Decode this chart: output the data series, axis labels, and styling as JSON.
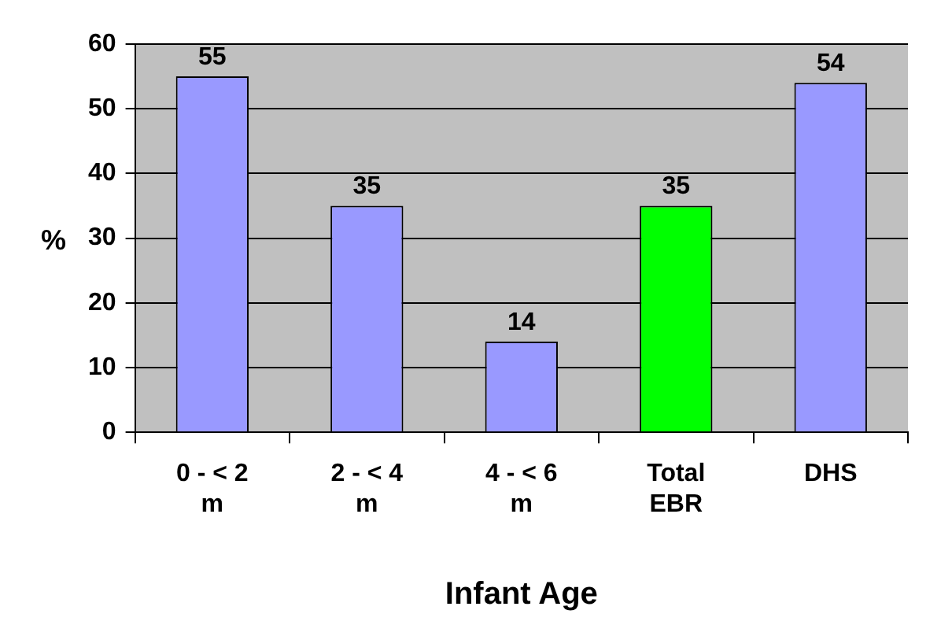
{
  "chart_data": {
    "type": "bar",
    "xlabel": "Infant Age",
    "ylabel": "%",
    "categories": [
      "0 - < 2 m",
      "2 - < 4 m",
      "4 - < 6 m",
      "Total EBR",
      "DHS"
    ],
    "values": [
      55,
      35,
      14,
      35,
      54
    ],
    "colors": [
      "#9999ff",
      "#9999ff",
      "#9999ff",
      "#00ff00",
      "#9999ff"
    ],
    "ylim": [
      0,
      60
    ],
    "yticks": [
      0,
      10,
      20,
      30,
      40,
      50,
      60
    ],
    "grid": "y",
    "data_labels": true,
    "legend": false
  }
}
